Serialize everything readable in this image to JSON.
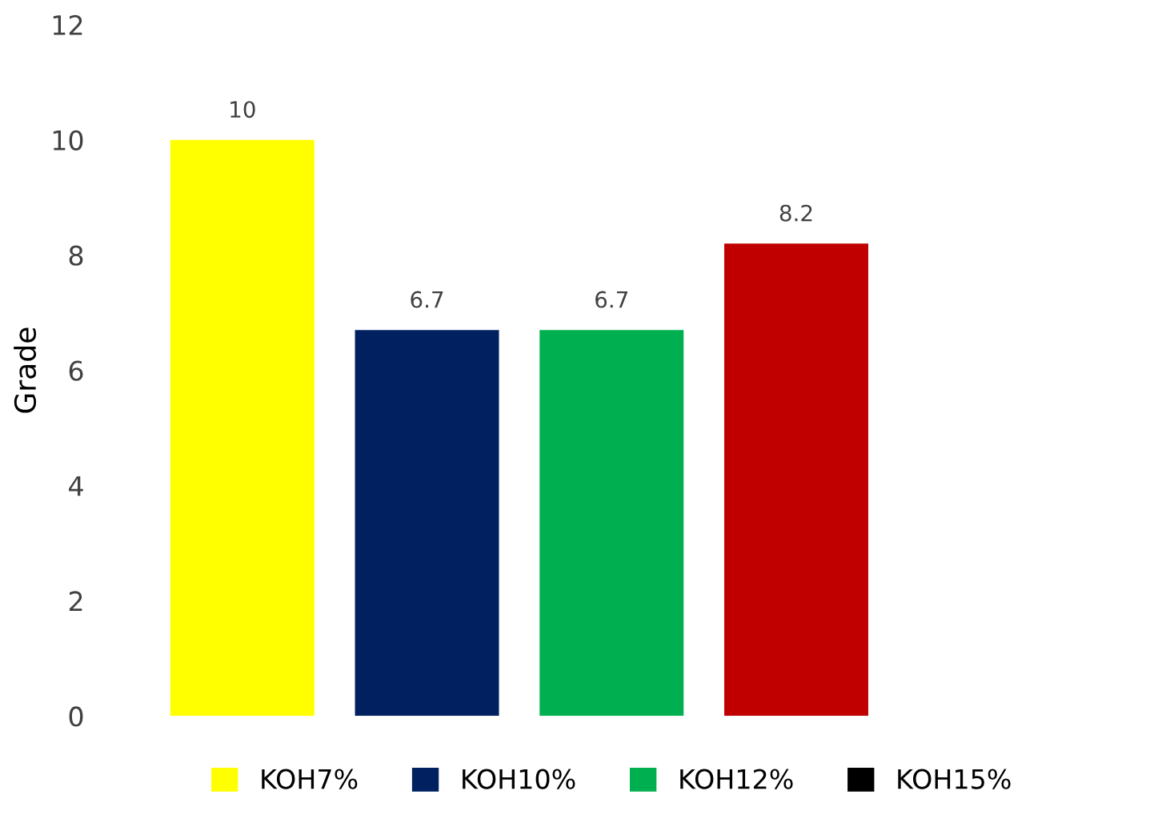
{
  "chart_data": {
    "type": "bar",
    "ylabel": "Grade",
    "categories": [
      null
    ],
    "series": [
      {
        "name": "KOH7%",
        "color": "#ffff00",
        "values": [
          10
        ]
      },
      {
        "name": "KOH10%",
        "color": "#002060",
        "values": [
          6.7
        ]
      },
      {
        "name": "KOH12%",
        "color": "#00b050",
        "values": [
          6.7
        ]
      },
      {
        "color": "#c00000",
        "values": [
          8.2
        ]
      },
      {
        "name": "KOH15%",
        "color": "#000000",
        "values": [
          null
        ]
      }
    ],
    "ylim": [
      0,
      12
    ],
    "yticks": [
      0,
      2,
      4,
      6,
      8,
      10,
      12
    ],
    "grid": false,
    "legend": "bottom",
    "data_labels": true
  }
}
